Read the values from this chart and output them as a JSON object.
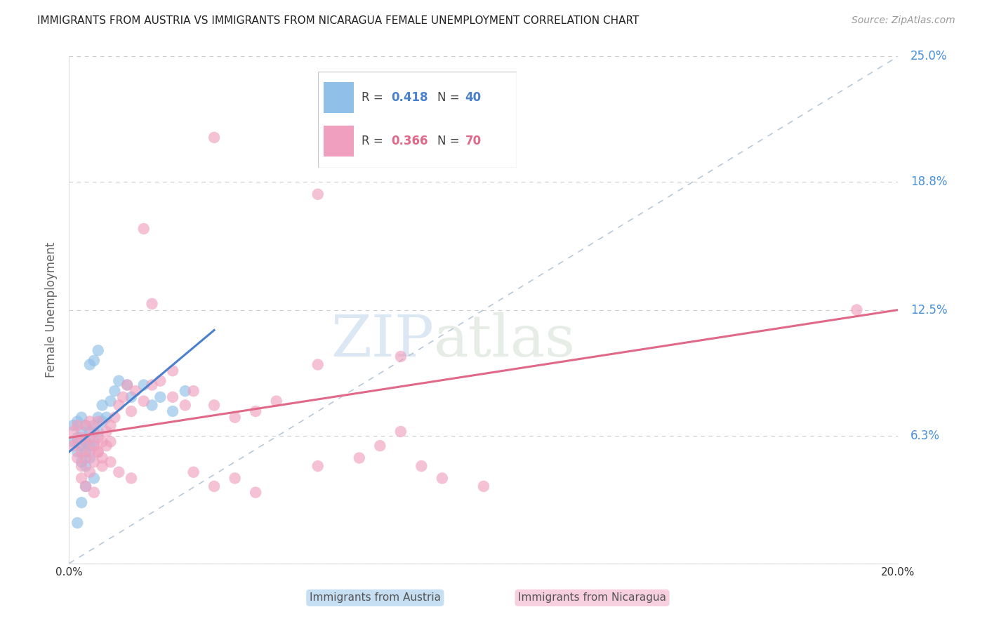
{
  "title": "IMMIGRANTS FROM AUSTRIA VS IMMIGRANTS FROM NICARAGUA FEMALE UNEMPLOYMENT CORRELATION CHART",
  "source": "Source: ZipAtlas.com",
  "ylabel": "Female Unemployment",
  "xlim": [
    0.0,
    0.2
  ],
  "ylim": [
    0.0,
    0.25
  ],
  "ytick_vals": [
    0.0,
    0.063,
    0.125,
    0.188,
    0.25
  ],
  "ytick_labels": [
    "",
    "6.3%",
    "12.5%",
    "18.8%",
    "25.0%"
  ],
  "xtick_vals": [
    0.0,
    0.05,
    0.1,
    0.15,
    0.2
  ],
  "xtick_labels": [
    "0.0%",
    "",
    "",
    "",
    "20.0%"
  ],
  "R_austria": "0.418",
  "N_austria": "40",
  "R_nicaragua": "0.366",
  "N_nicaragua": "70",
  "color_austria": "#90c0e8",
  "color_nicaragua": "#f0a0be",
  "color_line_austria": "#4a80cc",
  "color_line_nicaragua": "#e06888",
  "color_diagonal": "#b8c8d8",
  "color_ytick": "#4a90d9",
  "watermark_zip": "ZIP",
  "watermark_atlas": "atlas",
  "austria_line_x": [
    0.0,
    0.035
  ],
  "austria_line_y": [
    0.055,
    0.115
  ],
  "nicaragua_line_x": [
    0.0,
    0.2
  ],
  "nicaragua_line_y": [
    0.062,
    0.125
  ],
  "austria_x": [
    0.001,
    0.001,
    0.002,
    0.002,
    0.002,
    0.003,
    0.003,
    0.003,
    0.003,
    0.004,
    0.004,
    0.004,
    0.004,
    0.005,
    0.005,
    0.005,
    0.005,
    0.006,
    0.006,
    0.006,
    0.007,
    0.007,
    0.007,
    0.008,
    0.008,
    0.009,
    0.01,
    0.011,
    0.012,
    0.014,
    0.015,
    0.018,
    0.02,
    0.022,
    0.025,
    0.028,
    0.002,
    0.003,
    0.004,
    0.006
  ],
  "austria_y": [
    0.06,
    0.068,
    0.055,
    0.062,
    0.07,
    0.05,
    0.058,
    0.065,
    0.072,
    0.048,
    0.055,
    0.06,
    0.068,
    0.052,
    0.058,
    0.065,
    0.098,
    0.06,
    0.068,
    0.1,
    0.065,
    0.072,
    0.105,
    0.07,
    0.078,
    0.072,
    0.08,
    0.085,
    0.09,
    0.088,
    0.082,
    0.088,
    0.078,
    0.082,
    0.075,
    0.085,
    0.02,
    0.03,
    0.038,
    0.042
  ],
  "nicaragua_x": [
    0.001,
    0.001,
    0.002,
    0.002,
    0.002,
    0.003,
    0.003,
    0.003,
    0.004,
    0.004,
    0.004,
    0.005,
    0.005,
    0.005,
    0.006,
    0.006,
    0.006,
    0.007,
    0.007,
    0.007,
    0.008,
    0.008,
    0.009,
    0.009,
    0.01,
    0.01,
    0.011,
    0.012,
    0.013,
    0.014,
    0.015,
    0.016,
    0.018,
    0.02,
    0.022,
    0.025,
    0.028,
    0.03,
    0.035,
    0.04,
    0.045,
    0.05,
    0.06,
    0.07,
    0.075,
    0.08,
    0.085,
    0.09,
    0.1,
    0.19,
    0.003,
    0.004,
    0.005,
    0.006,
    0.007,
    0.008,
    0.01,
    0.012,
    0.015,
    0.018,
    0.02,
    0.025,
    0.03,
    0.035,
    0.04,
    0.045,
    0.06,
    0.08,
    0.035,
    0.06
  ],
  "nicaragua_y": [
    0.058,
    0.065,
    0.052,
    0.06,
    0.068,
    0.048,
    0.055,
    0.062,
    0.052,
    0.06,
    0.068,
    0.055,
    0.062,
    0.07,
    0.05,
    0.058,
    0.065,
    0.055,
    0.062,
    0.07,
    0.052,
    0.06,
    0.058,
    0.065,
    0.06,
    0.068,
    0.072,
    0.078,
    0.082,
    0.088,
    0.075,
    0.085,
    0.08,
    0.088,
    0.09,
    0.082,
    0.078,
    0.085,
    0.078,
    0.072,
    0.075,
    0.08,
    0.048,
    0.052,
    0.058,
    0.065,
    0.048,
    0.042,
    0.038,
    0.125,
    0.042,
    0.038,
    0.045,
    0.035,
    0.055,
    0.048,
    0.05,
    0.045,
    0.042,
    0.165,
    0.128,
    0.095,
    0.045,
    0.038,
    0.042,
    0.035,
    0.098,
    0.102,
    0.21,
    0.182
  ]
}
